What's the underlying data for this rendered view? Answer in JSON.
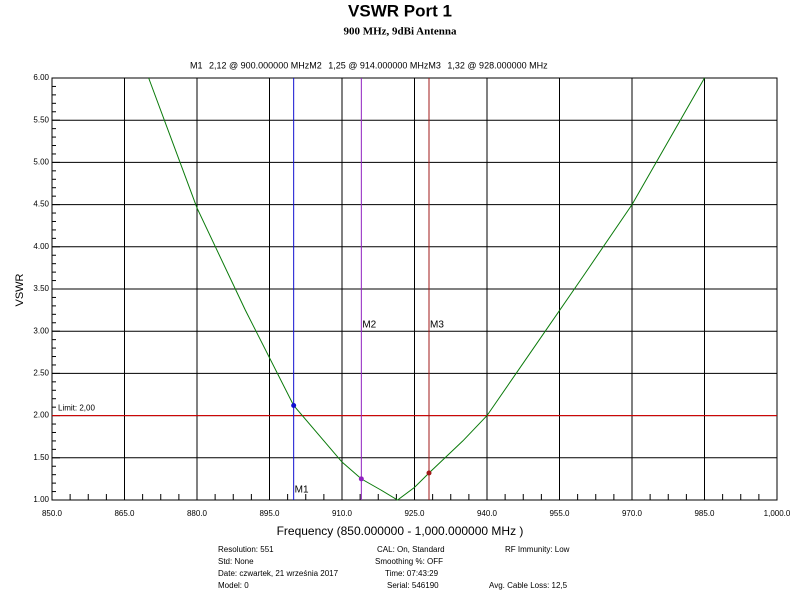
{
  "chart_data": {
    "type": "line",
    "title": "VSWR Port 1",
    "subtitle": "900 MHz, 9dBi Antenna",
    "x_label": "Frequency (850.000000 - 1,000.000000 MHz )",
    "y_label": "VSWR",
    "xlim": [
      850,
      1000
    ],
    "ylim": [
      1,
      6
    ],
    "xticks": [
      {
        "value": 850,
        "label": "850.0"
      },
      {
        "value": 865,
        "label": "865.0"
      },
      {
        "value": 880,
        "label": "880.0"
      },
      {
        "value": 895,
        "label": "895.0"
      },
      {
        "value": 910,
        "label": "910.0"
      },
      {
        "value": 925,
        "label": "925.0"
      },
      {
        "value": 940,
        "label": "940.0"
      },
      {
        "value": 955,
        "label": "955.0"
      },
      {
        "value": 970,
        "label": "970.0"
      },
      {
        "value": 985,
        "label": "985.0"
      },
      {
        "value": 1000,
        "label": "1,000.0"
      }
    ],
    "yticks": [
      {
        "value": 1,
        "label": "1.00"
      },
      {
        "value": 1.5,
        "label": "1.50"
      },
      {
        "value": 2,
        "label": "2.00"
      },
      {
        "value": 2.5,
        "label": "2.50"
      },
      {
        "value": 3,
        "label": "3.00"
      },
      {
        "value": 3.5,
        "label": "3.50"
      },
      {
        "value": 4,
        "label": "4.00"
      },
      {
        "value": 4.5,
        "label": "4.50"
      },
      {
        "value": 5,
        "label": "5.00"
      },
      {
        "value": 5.5,
        "label": "5.50"
      },
      {
        "value": 6,
        "label": "6.00"
      }
    ],
    "grid": true,
    "x": [
      870,
      880,
      890,
      900,
      910,
      914,
      918,
      921.5,
      925,
      928,
      935,
      940,
      950,
      960,
      970,
      985
    ],
    "series": [
      {
        "color": "#0a7a0a",
        "values": [
          6.0,
          4.46,
          3.25,
          2.12,
          1.45,
          1.25,
          1.12,
          1.0,
          1.15,
          1.32,
          1.7,
          2.0,
          2.83,
          3.66,
          4.5,
          6.0
        ]
      }
    ],
    "limit": {
      "value": 2,
      "label": "Limit: 2,00",
      "color": "#e00000"
    },
    "markers": [
      {
        "name": "M1",
        "label": "2,12 @ 900.000000 MHz",
        "x": 900,
        "value": 2.12,
        "color": "#1010d0"
      },
      {
        "name": "M2",
        "label": "1,25 @ 914.000000 MHz",
        "x": 914,
        "value": 1.25,
        "color": "#9020c0"
      },
      {
        "name": "M3",
        "label": "1,32 @ 928.000000 MHz",
        "x": 928,
        "value": 1.32,
        "color": "#a01818"
      }
    ],
    "info": [
      [
        "Resolution: 551",
        "Std: None",
        "Date: czwartek, 21 września 2017",
        "Model: 0"
      ],
      [
        "CAL: On, Standard",
        "Smoothing %:  OFF",
        "Time: 07:43:29",
        "Serial: 546190"
      ],
      [
        "RF Immunity: Low",
        "Avg. Cable Loss: 12,5"
      ]
    ]
  }
}
